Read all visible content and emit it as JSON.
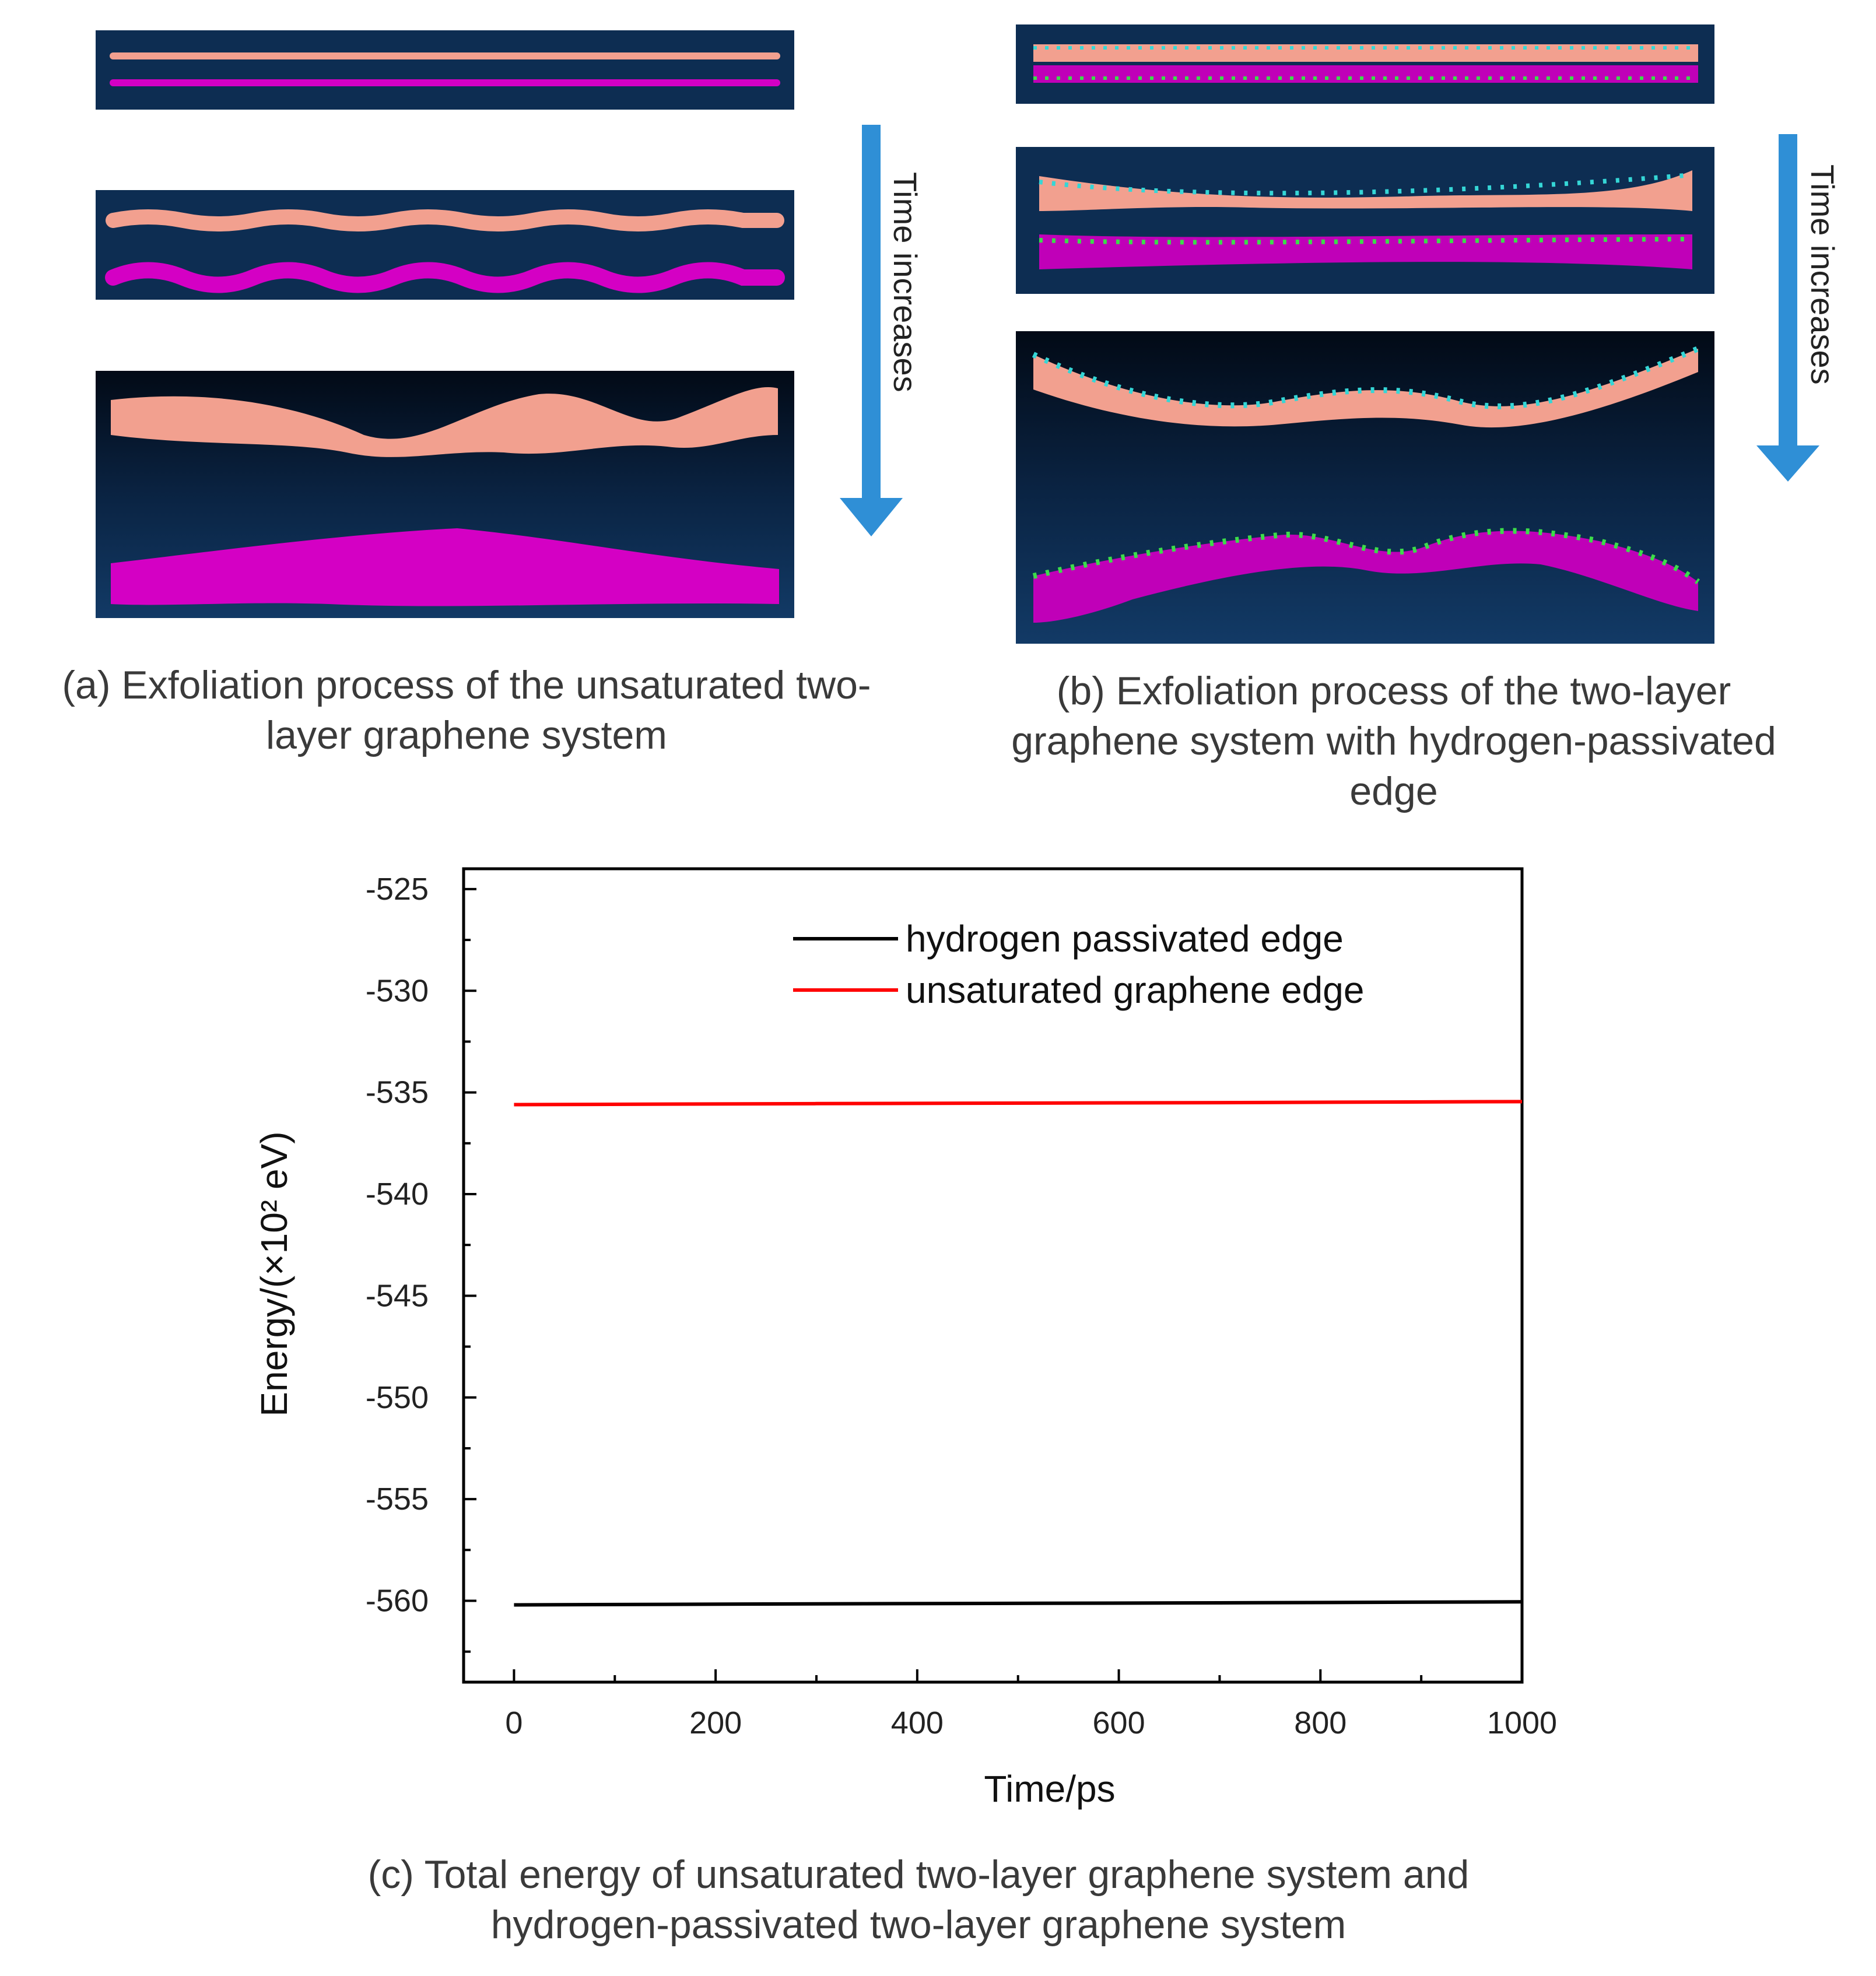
{
  "panel_a": {
    "caption_lines": [
      "(a) Exfoliation process of the unsaturated two-",
      "layer graphene system"
    ],
    "arrow_label": "Time increases",
    "colors": {
      "background": "#0d2d52",
      "top_layer": "#f2a08f",
      "bottom_layer": "#d400c4"
    }
  },
  "panel_b": {
    "caption_lines": [
      "(b) Exfoliation process of the two-layer",
      "graphene system with hydrogen-passivated",
      "edge"
    ],
    "arrow_label": "Time increases",
    "colors": {
      "background": "#0d2d52",
      "top_layer": "#f2a08f",
      "bottom_layer": "#c000b8",
      "hydrogen_top": "#35d6d6",
      "hydrogen_bottom": "#3cdc4a"
    }
  },
  "arrow_color": "#2f8fd6",
  "panel_c": {
    "caption_lines": [
      "(c) Total energy of  unsaturated two-layer graphene system and",
      "hydrogen-passivated  two-layer graphene system"
    ]
  },
  "chart_data": {
    "type": "line",
    "title": "",
    "xlabel": "Time/ps",
    "ylabel": "Energy/(×10² eV)",
    "xlim": [
      -50,
      1000
    ],
    "ylim": [
      -564,
      -524
    ],
    "xticks": [
      0,
      200,
      400,
      600,
      800,
      1000
    ],
    "xtick_labels": [
      "0",
      "200",
      "400",
      "600",
      "800",
      "1000"
    ],
    "yticks": [
      -525,
      -530,
      -535,
      -540,
      -545,
      -550,
      -555,
      -560
    ],
    "ytick_labels": [
      "-525",
      "-530",
      "-535",
      "-540",
      "-545",
      "-550",
      "-555",
      "-560"
    ],
    "legend_position": "top-right",
    "series": [
      {
        "name": "hydrogen passivated edge",
        "color": "#000000",
        "x": [
          0,
          300,
          700,
          1000
        ],
        "y": [
          -560.2,
          -560.15,
          -560.1,
          -560.05
        ]
      },
      {
        "name": "unsaturated graphene edge",
        "color": "#ff0000",
        "x": [
          0,
          300,
          700,
          1000
        ],
        "y": [
          -535.6,
          -535.55,
          -535.5,
          -535.45
        ]
      }
    ]
  }
}
